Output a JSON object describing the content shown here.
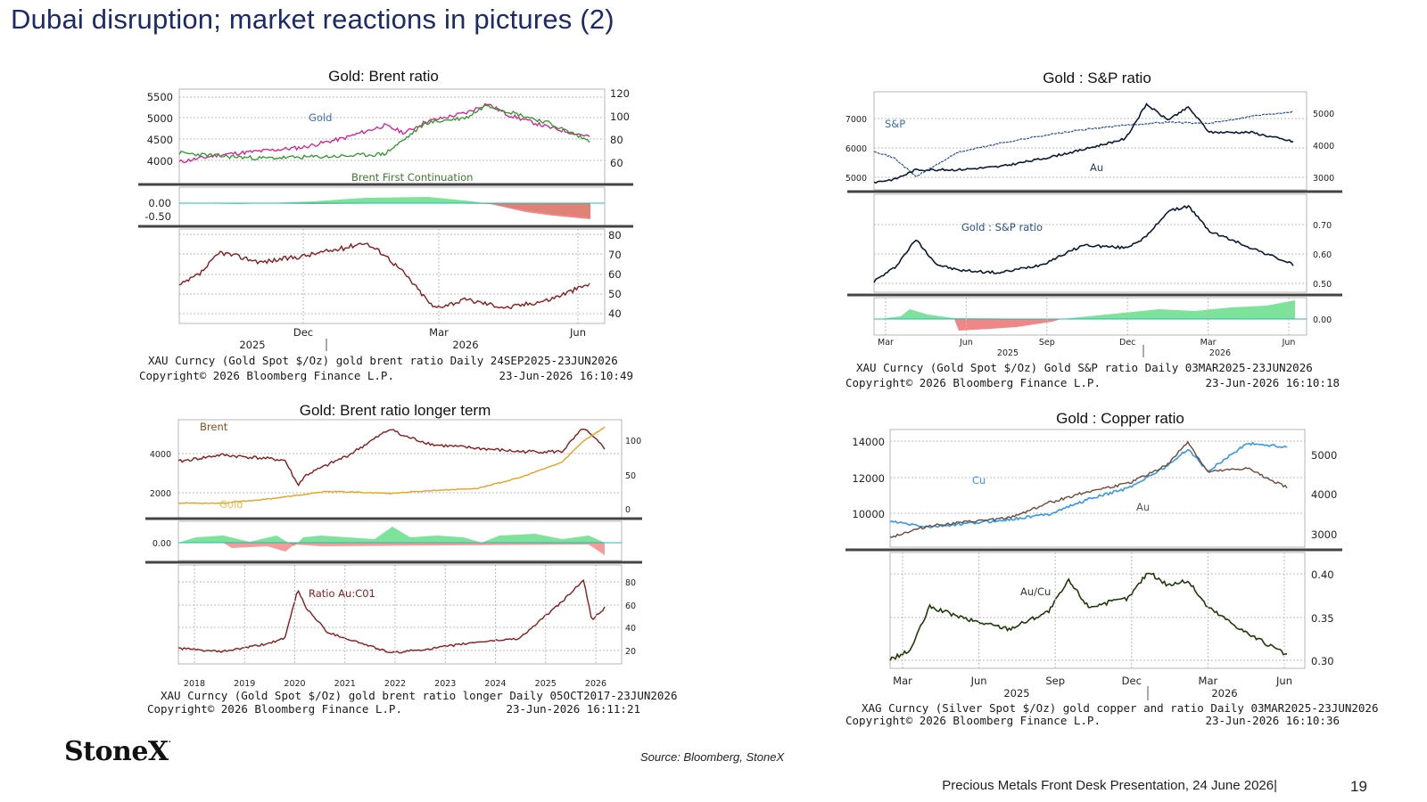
{
  "slide": {
    "title": "Dubai disruption; market reactions in pictures (2)",
    "logo": "StoneX",
    "source": "Source: Bloomberg, StoneX",
    "footer": "Precious Metals Front Desk Presentation, 24 June 2026|",
    "page_number": "19"
  },
  "colors": {
    "title": "#1b2a6b",
    "gold_candle": "#d81b8c",
    "brent_candle": "#2a9a2a",
    "ratio_line": "#8b1a1a",
    "area_pos": "#66dd88",
    "area_neg": "#f07070",
    "gold_line_long": "#e8a020",
    "sp_line": "#2b4f9e",
    "au_line": "#0b1a33",
    "cu_line": "#3399ee",
    "au_line_cu": "#6b4a3a",
    "aucu_ratio": "#1e3a0a"
  },
  "chart_data": [
    {
      "id": "gold_brent",
      "type": "line",
      "title": "Gold:  Brent ratio",
      "panel_labels": [
        "Gold",
        "Brent First Continuation"
      ],
      "left_axis_ticks": [
        "5500",
        "5000",
        "4500",
        "4000"
      ],
      "right_axis_ticks": [
        "120",
        "100",
        "80",
        "60"
      ],
      "mid_axis_ticks": [
        "0.00",
        "-0.50"
      ],
      "ratio_axis_ticks": [
        "80",
        "70",
        "60",
        "50",
        "40"
      ],
      "x_ticks": [
        "Dec",
        "Mar",
        "Jun"
      ],
      "x_years": [
        "2025",
        "2026"
      ],
      "footer_line1": "XAU Curncy (Gold Spot  $/Oz) gold brent ratio Daily 24SEP2025-23JUN2026",
      "footer_line2": "Copyright© 2026 Bloomberg Finance L.P.",
      "footer_time": "23-Jun-2026 16:10:49",
      "series": [
        {
          "name": "Gold",
          "x": [
            0,
            0.1,
            0.2,
            0.3,
            0.4,
            0.5,
            0.55,
            0.6,
            0.7,
            0.75,
            0.8,
            0.9,
            1.0
          ],
          "values": [
            3750,
            3950,
            4050,
            4150,
            4400,
            4750,
            4550,
            4850,
            5100,
            5350,
            5050,
            4700,
            4450
          ]
        },
        {
          "name": "Brent First Continuation",
          "x": [
            0,
            0.1,
            0.2,
            0.3,
            0.4,
            0.5,
            0.55,
            0.6,
            0.7,
            0.75,
            0.8,
            0.9,
            1.0
          ],
          "values": [
            67,
            64,
            62,
            63,
            64,
            66,
            80,
            95,
            100,
            112,
            106,
            95,
            78
          ]
        },
        {
          "name": "Ratio",
          "x": [
            0,
            0.05,
            0.1,
            0.2,
            0.3,
            0.4,
            0.45,
            0.5,
            0.55,
            0.62,
            0.7,
            0.8,
            0.9,
            1.0
          ],
          "values": [
            54,
            60,
            71,
            66,
            69,
            73,
            76,
            70,
            60,
            43,
            47,
            43,
            47,
            55
          ]
        }
      ]
    },
    {
      "id": "gold_brent_long",
      "type": "line",
      "title": "Gold:  Brent ratio longer term",
      "panel_labels": [
        "Brent",
        "Gold",
        "Ratio Au:C01"
      ],
      "left_axis_ticks": [
        "4000",
        "2000"
      ],
      "right_axis_ticks": [
        "100",
        "50",
        "0"
      ],
      "mid_axis_ticks": [
        "0.00"
      ],
      "ratio_axis_ticks": [
        "80",
        "60",
        "40",
        "20"
      ],
      "x_ticks": [
        "2018",
        "2019",
        "2020",
        "2021",
        "2022",
        "2023",
        "2024",
        "2025",
        "2026"
      ],
      "footer_line1": "XAU Curncy (Gold Spot  $/Oz) gold brent ratio longer Daily 05OCT2017-23JUN2026",
      "footer_line2": "Copyright© 2026 Bloomberg Finance L.P.",
      "footer_time": "23-Jun-2026 16:11:21",
      "series": [
        {
          "name": "Brent",
          "x": [
            0,
            0.1,
            0.2,
            0.25,
            0.28,
            0.3,
            0.4,
            0.5,
            0.52,
            0.6,
            0.7,
            0.8,
            0.9,
            0.95,
            1.0
          ],
          "values": [
            60,
            70,
            65,
            62,
            25,
            40,
            70,
            110,
            100,
            85,
            80,
            75,
            75,
            110,
            80
          ]
        },
        {
          "name": "Gold",
          "x": [
            0,
            0.1,
            0.2,
            0.3,
            0.35,
            0.5,
            0.6,
            0.7,
            0.8,
            0.85,
            0.9,
            0.95,
            1.0
          ],
          "values": [
            1300,
            1290,
            1480,
            1750,
            1900,
            1800,
            1950,
            2050,
            2600,
            3000,
            3400,
            4500,
            5200
          ]
        },
        {
          "name": "Ratio Au:C01",
          "x": [
            0,
            0.1,
            0.2,
            0.25,
            0.28,
            0.3,
            0.35,
            0.5,
            0.6,
            0.7,
            0.8,
            0.85,
            0.9,
            0.95,
            0.97,
            1.0
          ],
          "values": [
            22,
            19,
            25,
            30,
            70,
            55,
            35,
            18,
            22,
            27,
            30,
            45,
            60,
            78,
            45,
            55
          ]
        }
      ]
    },
    {
      "id": "gold_sp",
      "type": "line",
      "title": "Gold : S&P ratio",
      "panel_labels": [
        "S&P",
        "Au",
        "Gold : S&P ratio"
      ],
      "left_axis_ticks": [
        "7000",
        "6000",
        "5000"
      ],
      "right_axis_ticks": [
        "5000",
        "4000",
        "3000"
      ],
      "ratio_axis_ticks": [
        "0.70",
        "0.60",
        "0.50"
      ],
      "mid_axis_ticks": [
        "0.00"
      ],
      "x_ticks": [
        "Mar",
        "Jun",
        "Sep",
        "Dec",
        "Mar",
        "Jun"
      ],
      "x_years": [
        "2025",
        "2026"
      ],
      "footer_line1": "XAU Curncy (Gold Spot  $/Oz) Gold S&P ratio Daily 03MAR2025-23JUN2026",
      "footer_line2": "Copyright© 2026 Bloomberg Finance L.P.",
      "footer_time": "23-Jun-2026 16:10:18",
      "series": [
        {
          "name": "S&P",
          "x": [
            0,
            0.05,
            0.1,
            0.2,
            0.3,
            0.4,
            0.5,
            0.6,
            0.7,
            0.8,
            0.9,
            1.0
          ],
          "values": [
            5950,
            5700,
            5100,
            5900,
            6200,
            6450,
            6650,
            6800,
            6900,
            6850,
            7100,
            7250
          ]
        },
        {
          "name": "Au",
          "x": [
            0,
            0.05,
            0.1,
            0.2,
            0.3,
            0.4,
            0.5,
            0.6,
            0.65,
            0.7,
            0.75,
            0.8,
            0.9,
            1.0
          ],
          "values": [
            2900,
            3000,
            3300,
            3300,
            3400,
            3650,
            3950,
            4300,
            5400,
            4900,
            5300,
            4500,
            4500,
            4200
          ]
        },
        {
          "name": "Gold : S&P ratio",
          "x": [
            0,
            0.05,
            0.1,
            0.15,
            0.2,
            0.3,
            0.4,
            0.5,
            0.6,
            0.65,
            0.7,
            0.75,
            0.8,
            0.9,
            1.0
          ],
          "values": [
            0.5,
            0.55,
            0.65,
            0.56,
            0.54,
            0.53,
            0.56,
            0.63,
            0.62,
            0.66,
            0.75,
            0.77,
            0.68,
            0.62,
            0.56
          ]
        }
      ]
    },
    {
      "id": "gold_copper",
      "type": "line",
      "title": "Gold : Copper ratio",
      "panel_labels": [
        "Cu",
        "Au",
        "Au/Cu"
      ],
      "left_axis_ticks": [
        "14000",
        "12000",
        "10000"
      ],
      "right_axis_ticks": [
        "5000",
        "4000",
        "3000"
      ],
      "ratio_axis_ticks": [
        "0.40",
        "0.35",
        "0.30"
      ],
      "x_ticks": [
        "Mar",
        "Jun",
        "Sep",
        "Dec",
        "Mar",
        "Jun"
      ],
      "x_years": [
        "2025",
        "2026"
      ],
      "footer_line1": "XAG Curncy (Silver Spot  $/Oz) gold copper and ratio Daily 03MAR2025-23JUN2026",
      "footer_line2": "Copyright© 2026 Bloomberg Finance L.P.",
      "footer_time": "23-Jun-2026 16:10:36",
      "series": [
        {
          "name": "Cu",
          "x": [
            0,
            0.1,
            0.2,
            0.3,
            0.4,
            0.5,
            0.6,
            0.7,
            0.75,
            0.8,
            0.9,
            1.0
          ],
          "values": [
            9800,
            9500,
            9700,
            9900,
            10200,
            11000,
            11600,
            12800,
            13700,
            12500,
            14000,
            13800
          ]
        },
        {
          "name": "Au",
          "x": [
            0,
            0.1,
            0.2,
            0.3,
            0.4,
            0.5,
            0.6,
            0.7,
            0.75,
            0.8,
            0.9,
            1.0
          ],
          "values": [
            2900,
            3200,
            3300,
            3400,
            3800,
            4100,
            4300,
            4800,
            5400,
            4600,
            4700,
            4200
          ]
        },
        {
          "name": "Au/Cu",
          "x": [
            0,
            0.05,
            0.1,
            0.2,
            0.3,
            0.4,
            0.45,
            0.5,
            0.6,
            0.65,
            0.7,
            0.75,
            0.8,
            0.9,
            1.0
          ],
          "values": [
            0.3,
            0.31,
            0.36,
            0.345,
            0.335,
            0.355,
            0.39,
            0.36,
            0.37,
            0.4,
            0.385,
            0.39,
            0.36,
            0.33,
            0.305
          ]
        }
      ]
    }
  ]
}
